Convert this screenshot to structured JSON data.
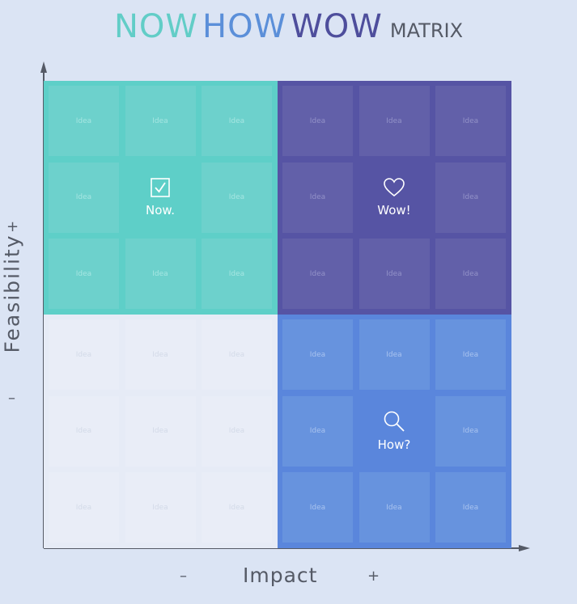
{
  "title": {
    "now": "NOW",
    "how": "HOW",
    "wow": "WOW",
    "matrix": "MATRIX"
  },
  "axes": {
    "x_label": "Impact",
    "y_label": "Feasibility",
    "x_minus": "–",
    "x_plus": "+",
    "y_minus": "–",
    "y_plus": "+"
  },
  "cell_text": "Idea",
  "quadrants": {
    "now": {
      "label": "Now.",
      "icon": "checkbox-icon",
      "color": "#5ecfc8"
    },
    "wow": {
      "label": "Wow!",
      "icon": "heart-icon",
      "color": "#5654a4"
    },
    "how": {
      "label": "How?",
      "icon": "magnifier-icon",
      "color": "#5a86dc"
    },
    "low": {
      "color": "#e6ebf6"
    }
  }
}
